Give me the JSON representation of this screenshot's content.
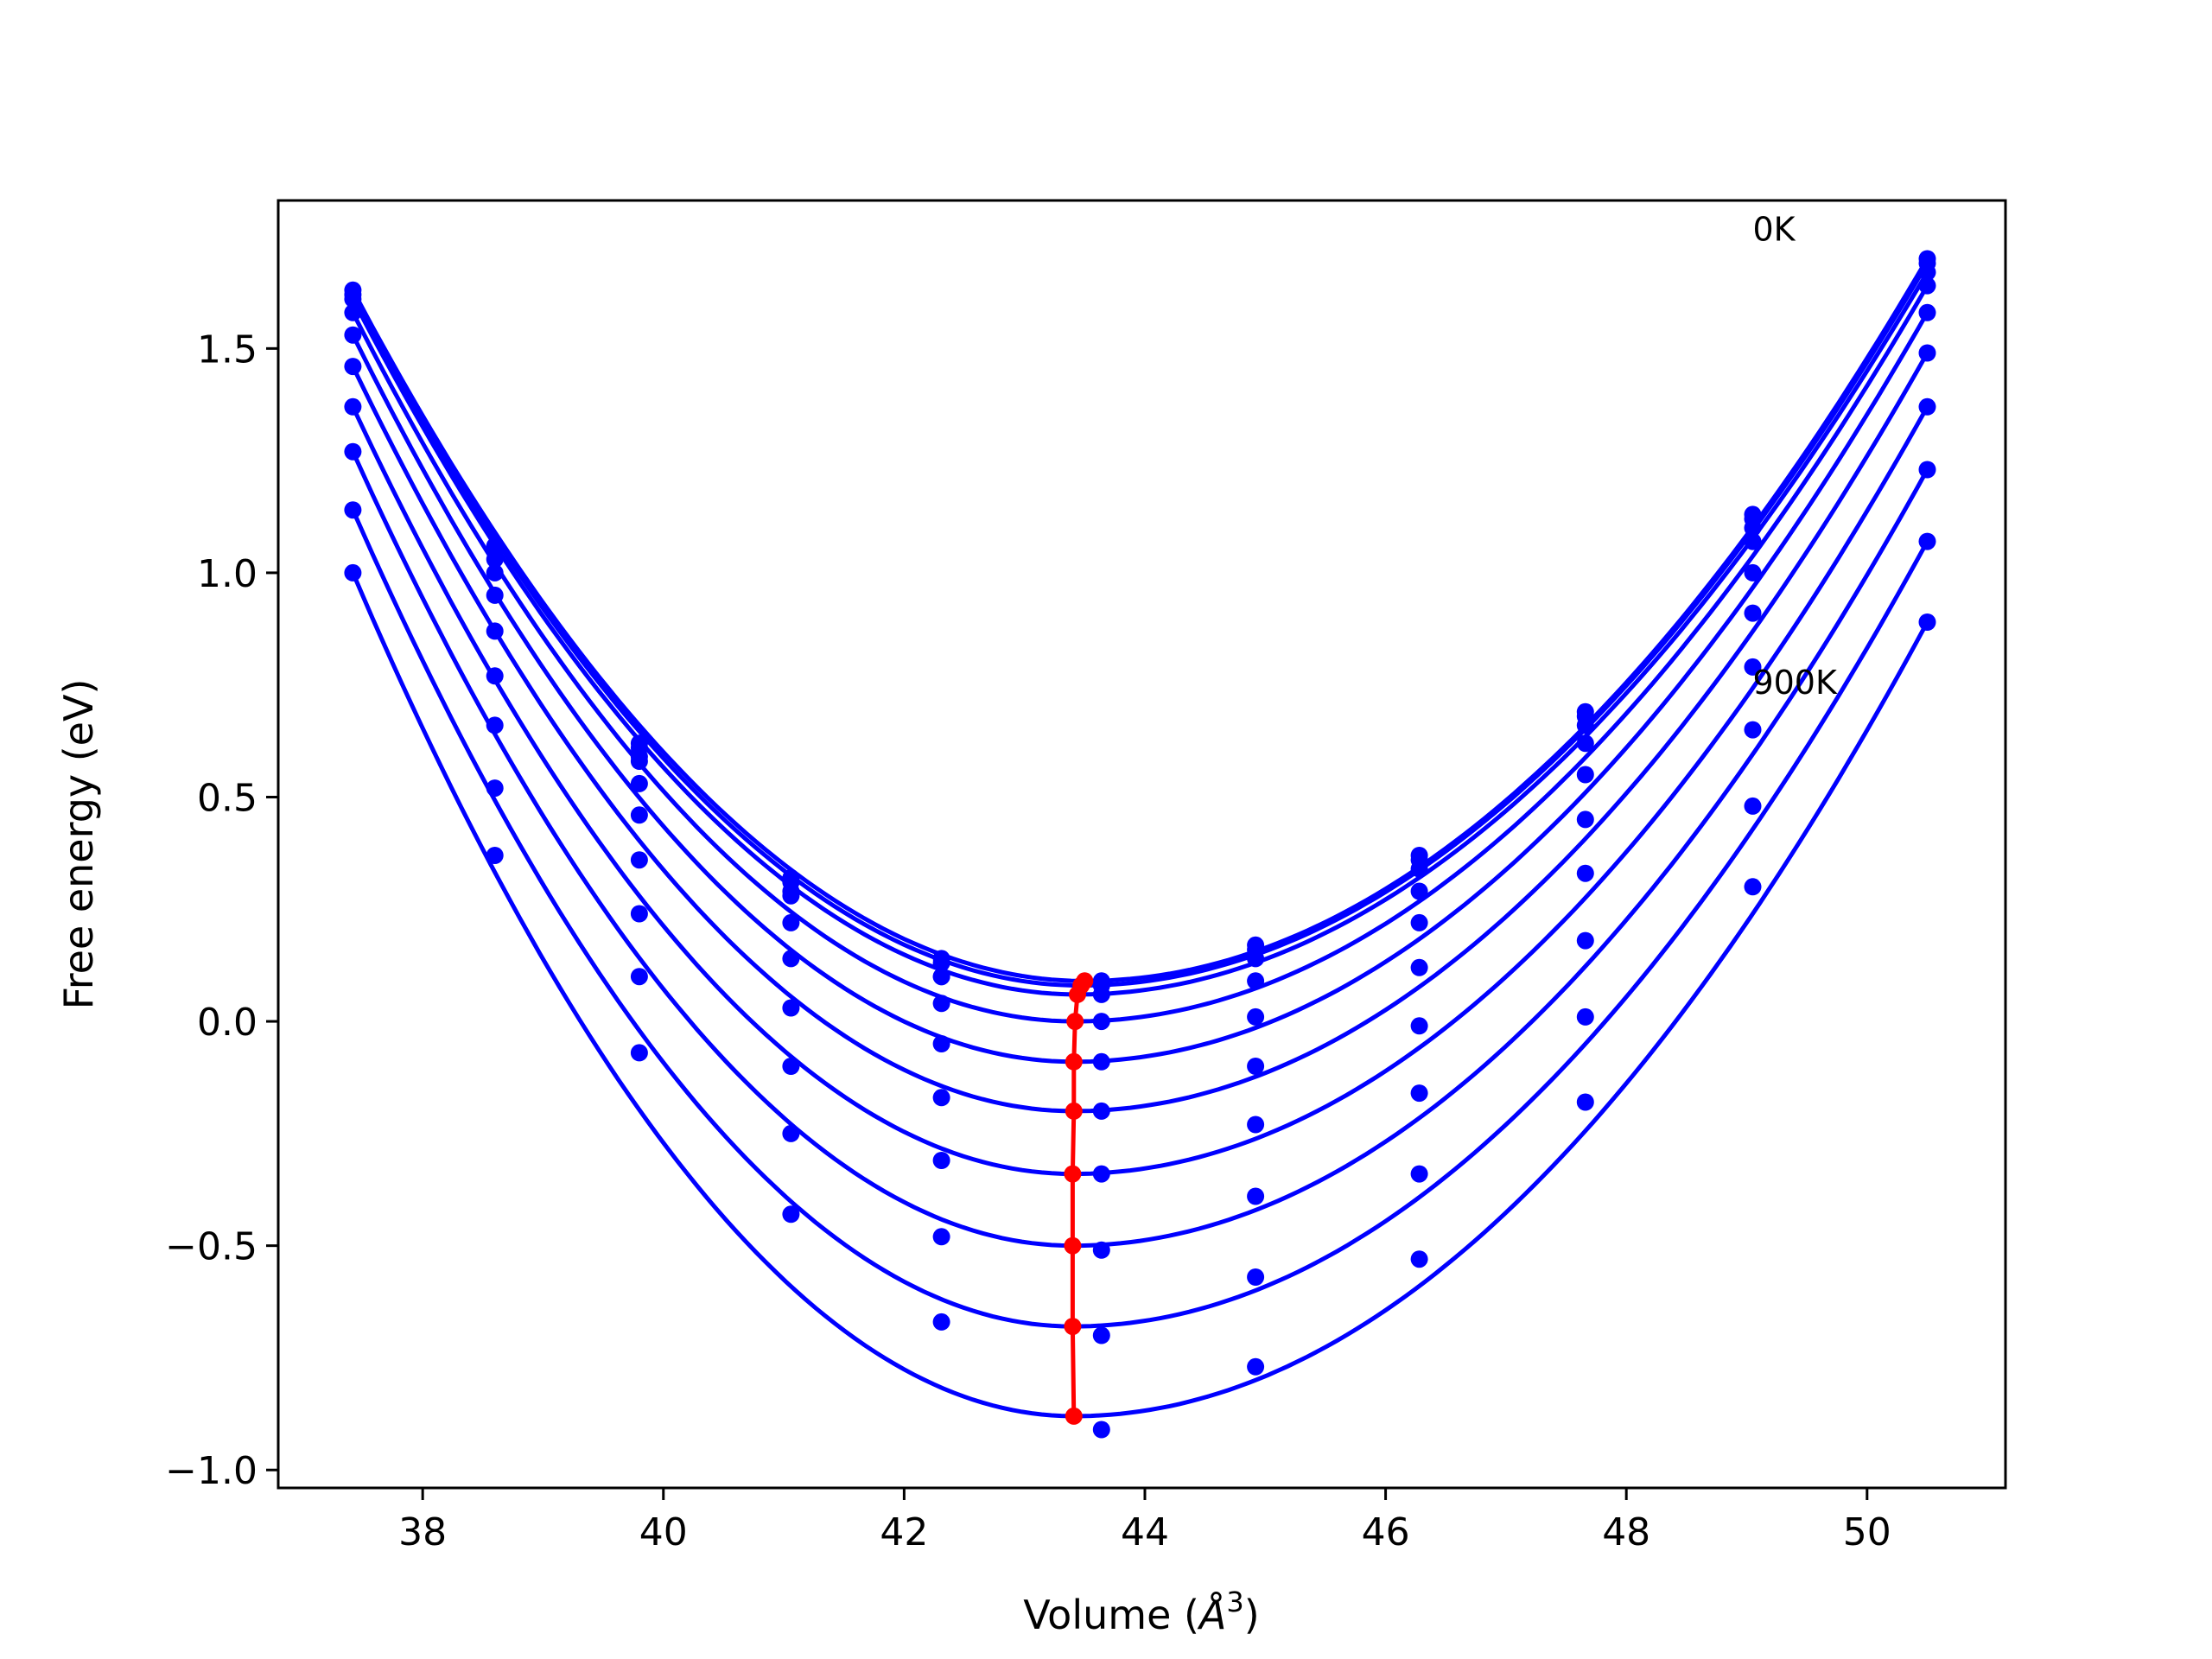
{
  "chart_data": {
    "type": "scatter",
    "title": "",
    "xlabel": "Volume (",
    "xlabel_symbol": "Å",
    "xlabel_exponent": "3",
    "xlabel_close": ")",
    "ylabel": "Free energy (eV)",
    "xlim": [
      36.8,
      51.15
    ],
    "ylim": [
      -1.04,
      1.83
    ],
    "xticks": [
      38,
      40,
      42,
      44,
      46,
      48,
      50
    ],
    "xtick_labels": [
      "38",
      "40",
      "42",
      "44",
      "46",
      "48",
      "50"
    ],
    "yticks": [
      -1.0,
      -0.5,
      0.0,
      0.5,
      1.0,
      1.5
    ],
    "ytick_labels": [
      "−1.0",
      "−0.5",
      "0.0",
      "0.5",
      "1.0",
      "1.5"
    ],
    "grid": false,
    "colors": {
      "fit_curves": "#0000ff",
      "data_points": "#0000ff",
      "minimum_path": "#ff0000"
    },
    "annotations": [
      {
        "text": "0K",
        "x": 49.05,
        "y": 1.74
      },
      {
        "text": "900K",
        "x": 49.05,
        "y": 0.73
      }
    ],
    "volumes": [
      37.42,
      38.6,
      39.8,
      41.06,
      42.31,
      43.64,
      44.92,
      46.28,
      47.66,
      49.05,
      50.5
    ],
    "series": [
      {
        "values": [
          1.63,
          1.06,
          0.62,
          0.32,
          0.14,
          0.09,
          0.17,
          0.37,
          0.69,
          1.13,
          1.7
        ],
        "fit_min": [
          43.5,
          0.09
        ]
      },
      {
        "values": [
          1.62,
          1.05,
          0.61,
          0.31,
          0.13,
          0.08,
          0.16,
          0.36,
          0.68,
          1.12,
          1.69
        ],
        "fit_min": [
          43.47,
          0.08
        ]
      },
      {
        "values": [
          1.61,
          1.03,
          0.59,
          0.29,
          0.1,
          0.06,
          0.14,
          0.34,
          0.66,
          1.1,
          1.67
        ],
        "fit_min": [
          43.44,
          0.06
        ]
      },
      {
        "values": [
          1.58,
          1.0,
          0.58,
          0.28,
          0.1,
          0.0,
          0.09,
          0.29,
          0.62,
          1.07,
          1.64
        ],
        "fit_min": [
          43.42,
          0.0
        ]
      },
      {
        "values": [
          1.53,
          0.95,
          0.53,
          0.22,
          0.04,
          -0.09,
          0.01,
          0.22,
          0.55,
          1.0,
          1.58
        ],
        "fit_min": [
          43.41,
          -0.09
        ]
      },
      {
        "values": [
          1.46,
          0.87,
          0.46,
          0.14,
          -0.05,
          -0.2,
          -0.1,
          0.12,
          0.45,
          0.91,
          1.49
        ],
        "fit_min": [
          43.41,
          -0.2
        ]
      },
      {
        "values": [
          1.37,
          0.77,
          0.36,
          0.03,
          -0.17,
          -0.34,
          -0.23,
          -0.01,
          0.33,
          0.79,
          1.37
        ],
        "fit_min": [
          43.4,
          -0.34
        ]
      },
      {
        "values": [
          1.27,
          0.66,
          0.24,
          -0.1,
          -0.31,
          -0.51,
          -0.39,
          -0.16,
          0.18,
          0.65,
          1.23
        ],
        "fit_min": [
          43.4,
          -0.5
        ]
      },
      {
        "values": [
          1.14,
          0.52,
          0.1,
          -0.25,
          -0.48,
          -0.7,
          -0.57,
          -0.34,
          0.01,
          0.48,
          1.07
        ],
        "fit_min": [
          43.4,
          -0.68
        ]
      },
      {
        "values": [
          1.0,
          0.37,
          -0.07,
          -0.43,
          -0.67,
          -0.91,
          -0.77,
          -0.53,
          -0.18,
          0.3,
          0.89
        ],
        "fit_min": [
          43.41,
          -0.88
        ]
      }
    ],
    "minimum_path": {
      "x": [
        43.5,
        43.47,
        43.44,
        43.42,
        43.41,
        43.41,
        43.4,
        43.4,
        43.4,
        43.41
      ],
      "y": [
        0.09,
        0.08,
        0.06,
        0.0,
        -0.09,
        -0.2,
        -0.34,
        -0.5,
        -0.68,
        -0.88
      ]
    }
  }
}
